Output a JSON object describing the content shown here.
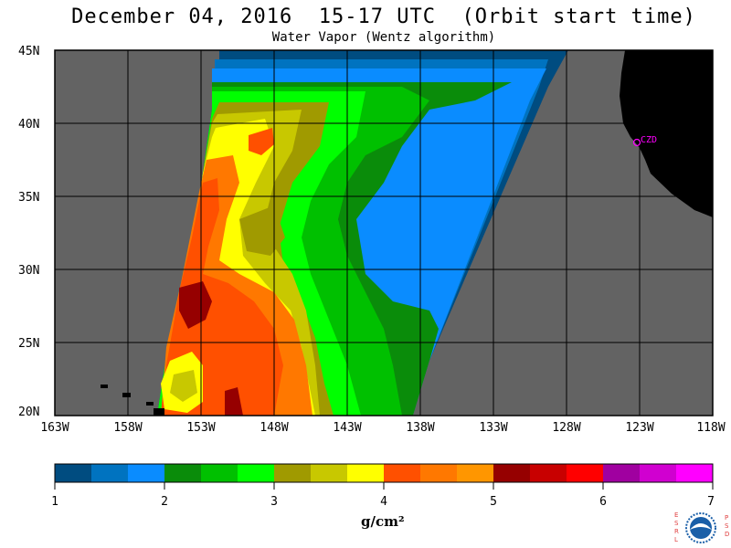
{
  "title": "December 04, 2016  15-17 UTC  (Orbit start time)",
  "subtitle": "Water Vapor (Wentz algorithm)",
  "map": {
    "lat_labels": [
      "45N",
      "40N",
      "35N",
      "30N",
      "25N",
      "20N"
    ],
    "lon_labels": [
      "163W",
      "158W",
      "153W",
      "148W",
      "143W",
      "138W",
      "133W",
      "128W",
      "123W",
      "118W"
    ],
    "station_label": "CZD",
    "colors": {
      "no_data": "#636363",
      "land": "#000000",
      "station": "#ff00ff",
      "grid": "#000000"
    }
  },
  "colorbar": {
    "units": "g/cm²",
    "tick_labels": [
      "1",
      "2",
      "3",
      "4",
      "5",
      "6",
      "7"
    ],
    "colors": [
      "#004c80",
      "#0073c0",
      "#0a8cff",
      "#0a8c0a",
      "#00c000",
      "#00ff00",
      "#a09a00",
      "#c8c800",
      "#ffff00",
      "#ff5000",
      "#ff7800",
      "#ff9600",
      "#960000",
      "#c80000",
      "#ff0000",
      "#a000a0",
      "#d000d0",
      "#ff00ff"
    ]
  },
  "logo": {
    "left_letters": "ESRL",
    "right_letters": "PSD",
    "center_text": "NOAA"
  }
}
